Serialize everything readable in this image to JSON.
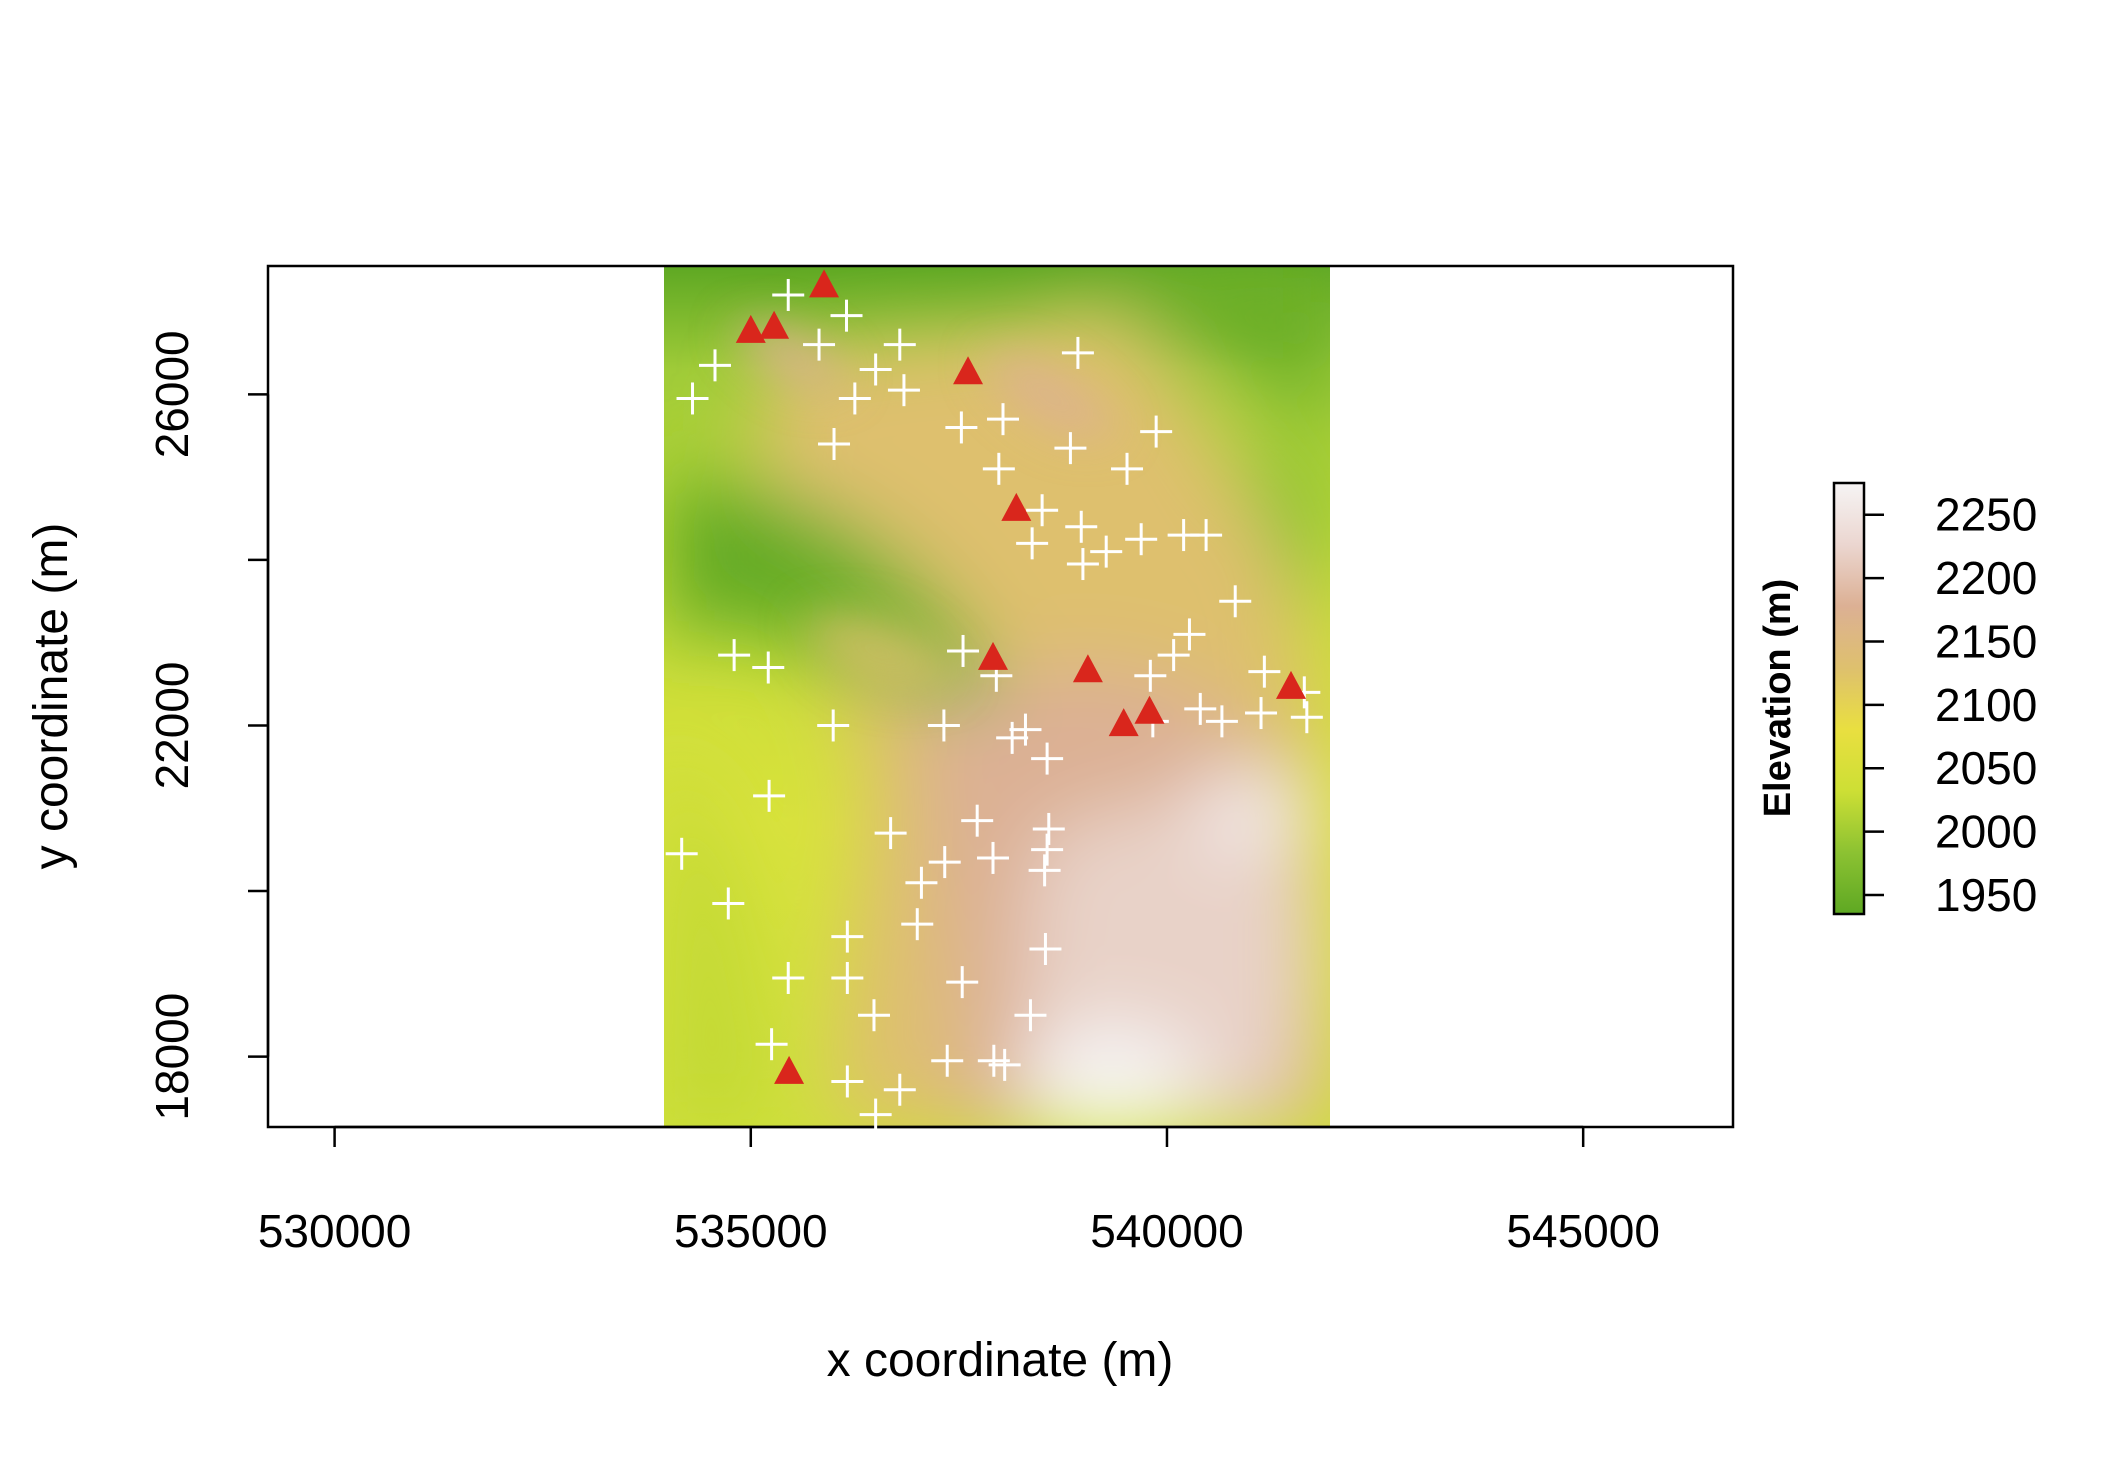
{
  "chart_data": {
    "type": "heatmap",
    "title": "",
    "xlabel": "x coordinate (m)",
    "ylabel": "y coordinate (m)",
    "xlim": [
      529200,
      546800
    ],
    "ylim": [
      17150,
      27550
    ],
    "raster_extent": {
      "xmin": 534000,
      "xmax": 542000,
      "ymin": 17150,
      "ymax": 27550
    },
    "x_ticks": [
      530000,
      535000,
      540000,
      545000
    ],
    "x_tick_labels": [
      "530000",
      "535000",
      "540000",
      "545000"
    ],
    "y_ticks": [
      18000,
      20000,
      22000,
      24000,
      26000
    ],
    "y_tick_labels": [
      "18000",
      "",
      "22000",
      "",
      "26000"
    ],
    "legend": {
      "title": "Elevation (m)",
      "position": "right",
      "range": [
        1935,
        2275
      ],
      "ticks": [
        1950,
        2000,
        2050,
        2100,
        2150,
        2200,
        2250
      ],
      "tick_labels": [
        "1950",
        "2000",
        "2050",
        "2100",
        "2150",
        "2200",
        "2250"
      ],
      "colors": [
        "#5ea823",
        "#8cc232",
        "#cddf35",
        "#e9df40",
        "#dec06e",
        "#dcb094",
        "#ebd6d0",
        "#f6f4f4"
      ]
    },
    "series": [
      {
        "marker": "cross",
        "color": "#ffffff",
        "points": [
          [
            534300,
            25950
          ],
          [
            534570,
            26350
          ],
          [
            534800,
            22850
          ],
          [
            535210,
            22700
          ],
          [
            535220,
            21150
          ],
          [
            534170,
            20450
          ],
          [
            534730,
            19850
          ],
          [
            535250,
            18150
          ],
          [
            535450,
            18950
          ],
          [
            535450,
            27200
          ],
          [
            535820,
            26600
          ],
          [
            535990,
            22000
          ],
          [
            536000,
            25400
          ],
          [
            536150,
            26950
          ],
          [
            536250,
            25950
          ],
          [
            536160,
            19450
          ],
          [
            536160,
            18950
          ],
          [
            536480,
            18500
          ],
          [
            536500,
            26300
          ],
          [
            536790,
            26600
          ],
          [
            536840,
            26050
          ],
          [
            536160,
            17700
          ],
          [
            536790,
            17600
          ],
          [
            536500,
            17300
          ],
          [
            536680,
            20700
          ],
          [
            537000,
            19600
          ],
          [
            537050,
            20100
          ],
          [
            537330,
            20350
          ],
          [
            537320,
            22000
          ],
          [
            537530,
            25600
          ],
          [
            537550,
            22900
          ],
          [
            537360,
            17950
          ],
          [
            537540,
            18900
          ],
          [
            537720,
            20850
          ],
          [
            537980,
            25100
          ],
          [
            538030,
            25700
          ],
          [
            537950,
            22600
          ],
          [
            537920,
            17950
          ],
          [
            537910,
            20400
          ],
          [
            538140,
            21850
          ],
          [
            538300,
            21950
          ],
          [
            538050,
            17900
          ],
          [
            538360,
            18500
          ],
          [
            538500,
            24600
          ],
          [
            538380,
            24200
          ],
          [
            538560,
            21600
          ],
          [
            538580,
            20750
          ],
          [
            538560,
            20500
          ],
          [
            538530,
            20250
          ],
          [
            538540,
            19300
          ],
          [
            538840,
            25350
          ],
          [
            538930,
            26500
          ],
          [
            538970,
            24400
          ],
          [
            538990,
            23950
          ],
          [
            539270,
            24100
          ],
          [
            539520,
            25100
          ],
          [
            539690,
            24250
          ],
          [
            539870,
            25550
          ],
          [
            539800,
            22600
          ],
          [
            539830,
            22050
          ],
          [
            540080,
            22850
          ],
          [
            540200,
            24300
          ],
          [
            540270,
            23100
          ],
          [
            540400,
            22200
          ],
          [
            540470,
            24300
          ],
          [
            540660,
            22050
          ],
          [
            540820,
            23500
          ],
          [
            541130,
            22150
          ],
          [
            541170,
            22650
          ],
          [
            541650,
            22400
          ],
          [
            541680,
            22100
          ]
        ]
      },
      {
        "marker": "triangle",
        "color": "#d9261c",
        "points": [
          [
            535000,
            26750
          ],
          [
            535280,
            26800
          ],
          [
            535880,
            27300
          ],
          [
            537610,
            26250
          ],
          [
            538190,
            24600
          ],
          [
            537910,
            22800
          ],
          [
            539050,
            22650
          ],
          [
            539480,
            22000
          ],
          [
            539790,
            22150
          ],
          [
            541490,
            22450
          ],
          [
            535460,
            17800
          ]
        ]
      }
    ]
  }
}
